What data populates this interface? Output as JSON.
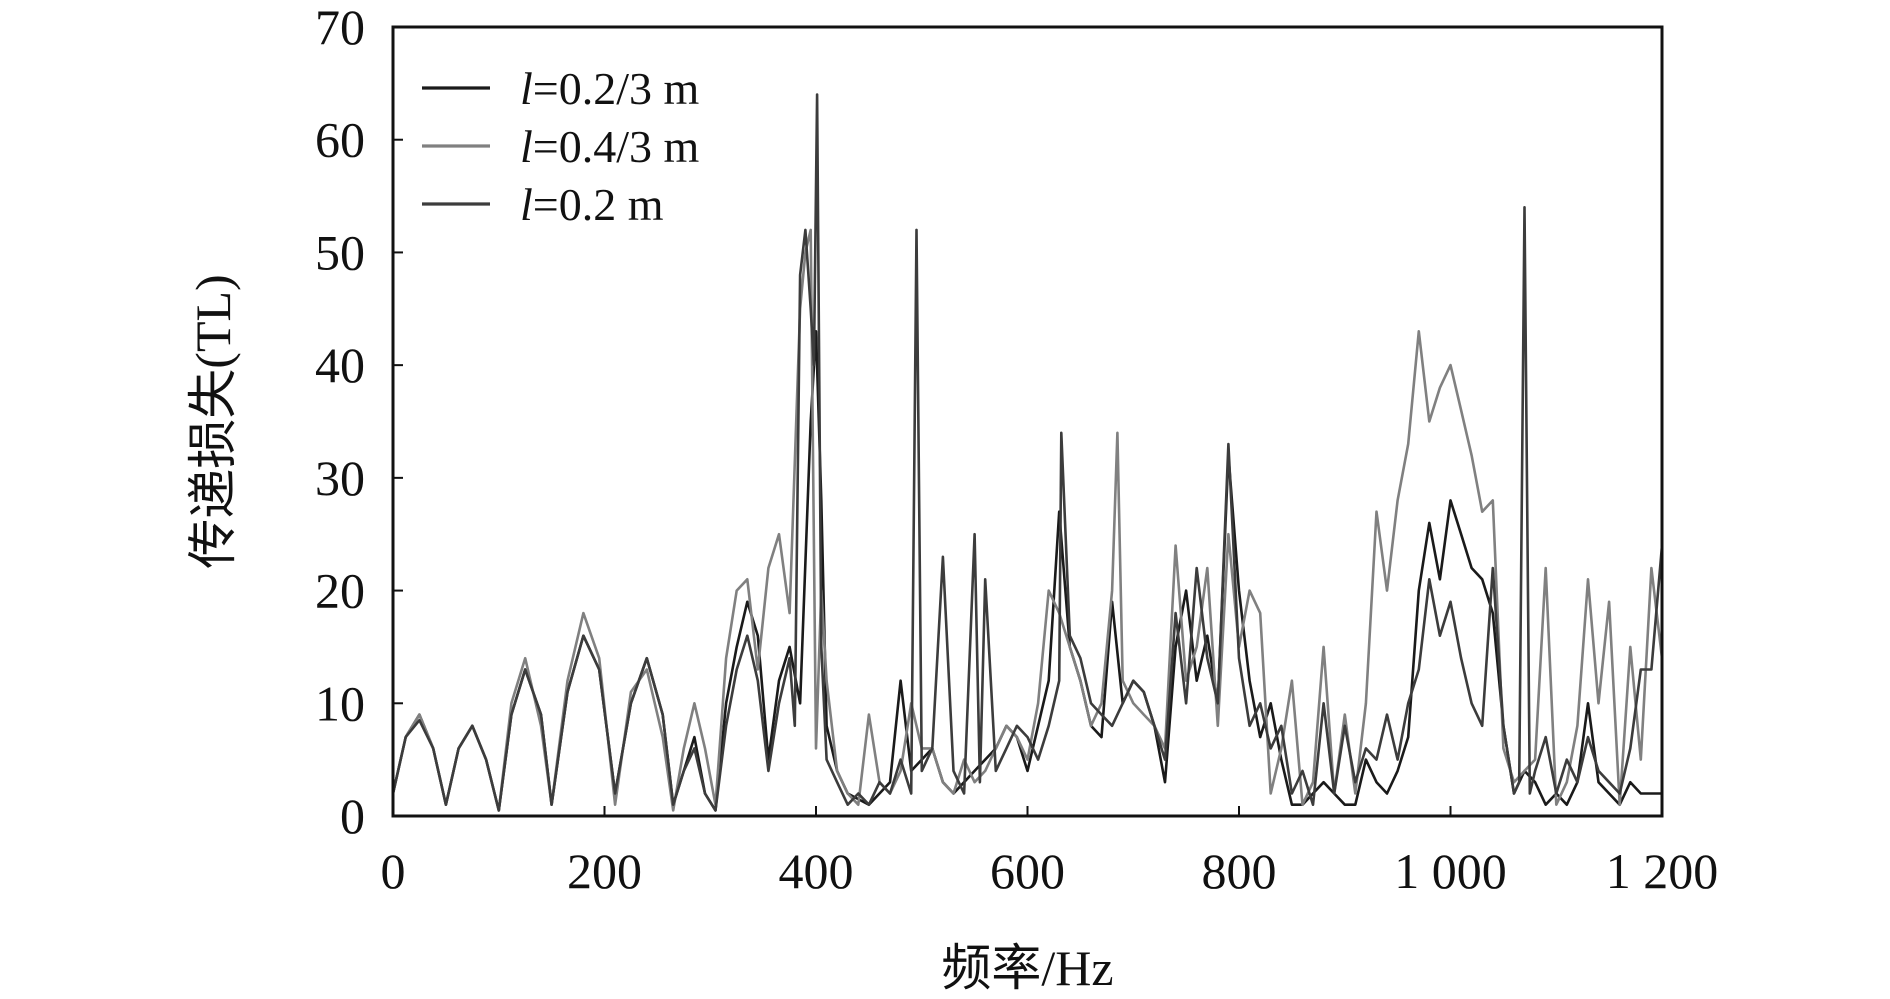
{
  "chart_data": {
    "type": "line",
    "xlabel": "频率/Hz",
    "ylabel": "传递损失(TL)",
    "xlim": [
      0,
      1200
    ],
    "ylim": [
      0,
      70
    ],
    "xticks": [
      0,
      200,
      400,
      600,
      800,
      1000,
      1200
    ],
    "xtick_labels": [
      "0",
      "200",
      "400",
      "600",
      "800",
      "1 000",
      "1 200"
    ],
    "yticks": [
      0,
      10,
      20,
      30,
      40,
      50,
      60,
      70
    ],
    "ytick_labels": [
      "0",
      "10",
      "20",
      "30",
      "40",
      "50",
      "60",
      "70"
    ],
    "grid": false,
    "legend_position": "top-left",
    "series": [
      {
        "name": "l=0.2/3 m",
        "legend_prefix": "l",
        "legend_suffix": "=0.2/3 m",
        "color": "#1a1a1a",
        "x": [
          0,
          12,
          25,
          38,
          50,
          62,
          75,
          88,
          100,
          112,
          125,
          140,
          150,
          165,
          180,
          195,
          210,
          225,
          240,
          255,
          265,
          275,
          285,
          295,
          305,
          315,
          325,
          335,
          345,
          355,
          365,
          375,
          385,
          395,
          400,
          405,
          410,
          420,
          430,
          440,
          450,
          460,
          470,
          480,
          490,
          500,
          510,
          520,
          530,
          540,
          550,
          560,
          570,
          580,
          590,
          600,
          610,
          620,
          630,
          640,
          650,
          660,
          670,
          680,
          690,
          700,
          710,
          720,
          730,
          740,
          750,
          760,
          770,
          780,
          790,
          800,
          810,
          820,
          830,
          840,
          850,
          860,
          870,
          880,
          890,
          900,
          910,
          920,
          930,
          940,
          950,
          960,
          970,
          980,
          990,
          1000,
          1010,
          1020,
          1030,
          1040,
          1050,
          1060,
          1070,
          1080,
          1090,
          1100,
          1110,
          1120,
          1130,
          1140,
          1150,
          1160,
          1170,
          1180,
          1190,
          1200
        ],
        "y": [
          2,
          7,
          9,
          6,
          1,
          6,
          8,
          5,
          0.5,
          9,
          13,
          9,
          1,
          11,
          16,
          13,
          2,
          10,
          14,
          9,
          1,
          4,
          7,
          2,
          0.5,
          10,
          15,
          19,
          16,
          5,
          12,
          15,
          10,
          35,
          43,
          28,
          8,
          4,
          2,
          1.5,
          1,
          2,
          3,
          12,
          4,
          5,
          6,
          3,
          2,
          3,
          4,
          5,
          6,
          8,
          7,
          4,
          8,
          12,
          27,
          15,
          12,
          8,
          7,
          19,
          10,
          12,
          11,
          8,
          3,
          15,
          20,
          12,
          16,
          10,
          32,
          20,
          12,
          7,
          10,
          5,
          1,
          1,
          2,
          3,
          2,
          1,
          1,
          5,
          3,
          2,
          4,
          7,
          20,
          26,
          21,
          28,
          25,
          22,
          21,
          18,
          8,
          2,
          4,
          3,
          1,
          2,
          1,
          3,
          10,
          3,
          2,
          1,
          3,
          2,
          2,
          2
        ]
      },
      {
        "name": "l=0.4/3 m",
        "legend_prefix": "l",
        "legend_suffix": "=0.4/3 m",
        "color": "#808080",
        "x": [
          0,
          12,
          25,
          38,
          50,
          62,
          75,
          88,
          100,
          112,
          125,
          140,
          150,
          165,
          180,
          195,
          210,
          225,
          240,
          255,
          265,
          275,
          285,
          295,
          305,
          315,
          325,
          335,
          345,
          355,
          365,
          375,
          385,
          390,
          395,
          400,
          405,
          410,
          420,
          430,
          440,
          450,
          460,
          470,
          480,
          490,
          500,
          510,
          520,
          530,
          540,
          550,
          560,
          570,
          580,
          590,
          600,
          610,
          620,
          630,
          640,
          650,
          660,
          670,
          680,
          685,
          690,
          700,
          710,
          720,
          730,
          740,
          750,
          760,
          770,
          780,
          790,
          800,
          810,
          820,
          830,
          840,
          850,
          860,
          870,
          880,
          890,
          900,
          910,
          920,
          930,
          940,
          950,
          960,
          970,
          980,
          990,
          1000,
          1010,
          1020,
          1030,
          1040,
          1050,
          1060,
          1070,
          1080,
          1090,
          1100,
          1110,
          1120,
          1130,
          1140,
          1150,
          1160,
          1170,
          1180,
          1190,
          1200
        ],
        "y": [
          2,
          7,
          9,
          6,
          1,
          6,
          8,
          5,
          0.5,
          10,
          14,
          8,
          1,
          12,
          18,
          14,
          1,
          11,
          13,
          7,
          0.5,
          6,
          10,
          6,
          1,
          14,
          20,
          21,
          13,
          22,
          25,
          18,
          45,
          50,
          52,
          6,
          20,
          12,
          4,
          2,
          1,
          9,
          3,
          2,
          4,
          10,
          6,
          6,
          3,
          2,
          5,
          3,
          4,
          6,
          8,
          7,
          5,
          10,
          20,
          18,
          15,
          12,
          8,
          10,
          20,
          34,
          12,
          10,
          9,
          8,
          6,
          24,
          12,
          15,
          22,
          8,
          25,
          15,
          20,
          18,
          2,
          6,
          12,
          1,
          3,
          15,
          2,
          9,
          2,
          10,
          27,
          20,
          28,
          33,
          43,
          35,
          38,
          40,
          36,
          32,
          27,
          28,
          6,
          3,
          4,
          5,
          22,
          1,
          3,
          8,
          21,
          10,
          19,
          1,
          15,
          5,
          22,
          14
        ]
      },
      {
        "name": "l=0.2 m",
        "legend_prefix": "l",
        "legend_suffix": "=0.2 m",
        "color": "#3c3c3c",
        "x": [
          0,
          12,
          25,
          38,
          50,
          62,
          75,
          88,
          100,
          112,
          125,
          140,
          150,
          165,
          180,
          195,
          210,
          225,
          240,
          255,
          265,
          275,
          285,
          295,
          305,
          315,
          325,
          335,
          345,
          355,
          365,
          375,
          380,
          385,
          390,
          395,
          398,
          401,
          405,
          410,
          420,
          430,
          440,
          450,
          460,
          470,
          480,
          490,
          495,
          500,
          510,
          520,
          530,
          540,
          550,
          555,
          560,
          570,
          580,
          590,
          600,
          610,
          620,
          630,
          632,
          640,
          650,
          660,
          670,
          680,
          690,
          700,
          710,
          720,
          730,
          740,
          750,
          760,
          770,
          780,
          790,
          800,
          810,
          820,
          830,
          840,
          850,
          860,
          870,
          880,
          890,
          900,
          910,
          920,
          930,
          940,
          950,
          960,
          970,
          980,
          990,
          1000,
          1010,
          1020,
          1030,
          1040,
          1050,
          1060,
          1065,
          1070,
          1075,
          1080,
          1090,
          1100,
          1110,
          1120,
          1130,
          1140,
          1150,
          1160,
          1170,
          1180,
          1190,
          1200
        ],
        "y": [
          2,
          7,
          8.5,
          6,
          1,
          6,
          8,
          5,
          0.5,
          9,
          13,
          9,
          1,
          11,
          16,
          13,
          2,
          10,
          14,
          9,
          1,
          4,
          6,
          2,
          0.5,
          8,
          13,
          16,
          12,
          4,
          10,
          14,
          8,
          48,
          52,
          45,
          40,
          64,
          15,
          5,
          3,
          1,
          2,
          1,
          3,
          2,
          5,
          2,
          52,
          4,
          6,
          23,
          4,
          2,
          25,
          3,
          21,
          4,
          6,
          8,
          7,
          5,
          8,
          12,
          34,
          16,
          14,
          10,
          9,
          8,
          10,
          12,
          11,
          8,
          5,
          18,
          10,
          22,
          14,
          10,
          33,
          14,
          8,
          10,
          6,
          8,
          2,
          4,
          1,
          10,
          2,
          8,
          3,
          6,
          5,
          9,
          5,
          10,
          13,
          21,
          16,
          19,
          14,
          10,
          8,
          22,
          8,
          2,
          3,
          54,
          2,
          4,
          7,
          2,
          5,
          3,
          7,
          4,
          3,
          2,
          6,
          13,
          13,
          24
        ]
      }
    ]
  }
}
